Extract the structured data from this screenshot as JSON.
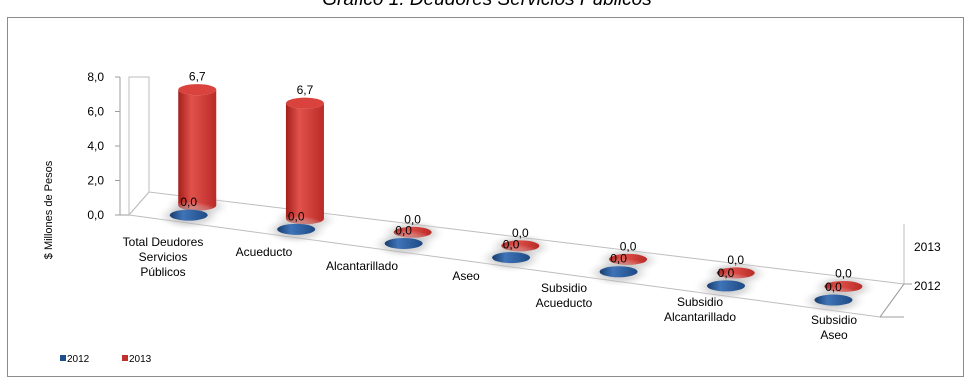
{
  "chart_data": {
    "type": "bar",
    "style": "3d-cylinder",
    "title": "Gráfico 1. Deudores Servicios Públicos",
    "ylabel": "$ Millones de Pesos",
    "xlabel": "",
    "ylim": [
      0,
      8
    ],
    "yticks": [
      "0,0",
      "2,0",
      "4,0",
      "6,0",
      "8,0"
    ],
    "categories": [
      [
        "Total Deudores",
        "Servicios",
        "Públicos"
      ],
      [
        "Acueducto"
      ],
      [
        "Alcantarillado"
      ],
      [
        "Aseo"
      ],
      [
        "Subsidio",
        "Acueducto"
      ],
      [
        "Subsidio",
        "Alcantarillado"
      ],
      [
        "Subsidio",
        "Aseo"
      ]
    ],
    "depth_labels": [
      "2013",
      "2012"
    ],
    "series": [
      {
        "name": "2012",
        "color": "#1f4e8c",
        "values": [
          0.0,
          0.0,
          0.0,
          0.0,
          0.0,
          0.0,
          0.0
        ],
        "labels": [
          "0,0",
          "0,0",
          "0,0",
          "0,0",
          "0,0",
          "0,0",
          "0,0"
        ]
      },
      {
        "name": "2013",
        "color": "#c0302c",
        "values": [
          6.7,
          6.7,
          0.0,
          0.0,
          0.0,
          0.0,
          0.0
        ],
        "labels": [
          "6,7",
          "6,7",
          "0,0",
          "0,0",
          "0,0",
          "0,0",
          "0,0"
        ]
      }
    ],
    "legend_position": "bottom-left",
    "grid": false
  }
}
